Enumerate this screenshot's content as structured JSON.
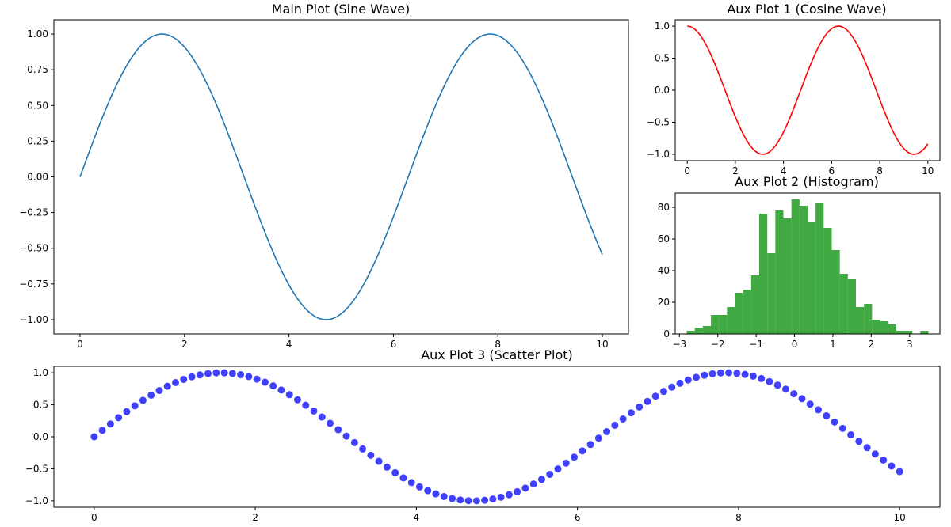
{
  "chart_data": [
    {
      "id": "main",
      "type": "line",
      "title": "Main Plot (Sine Wave)",
      "function": "sin",
      "color": "#1f77b4",
      "x_range": [
        0,
        10
      ],
      "xlim": [
        -0.5,
        10.5
      ],
      "ylim": [
        -1.1,
        1.1
      ],
      "x_ticks": [
        0,
        2,
        4,
        6,
        8,
        10
      ],
      "x_tick_labels": [
        "0",
        "2",
        "4",
        "6",
        "8",
        "10"
      ],
      "y_ticks": [
        -1.0,
        -0.75,
        -0.5,
        -0.25,
        0.0,
        0.25,
        0.5,
        0.75,
        1.0
      ],
      "y_tick_labels": [
        "−1.00",
        "−0.75",
        "−0.50",
        "−0.25",
        "0.00",
        "0.25",
        "0.50",
        "0.75",
        "1.00"
      ],
      "grid": false
    },
    {
      "id": "aux1",
      "type": "line",
      "title": "Aux Plot 1 (Cosine Wave)",
      "function": "cos",
      "color": "#ff0000",
      "x_range": [
        0,
        10
      ],
      "xlim": [
        -0.5,
        10.5
      ],
      "ylim": [
        -1.1,
        1.1
      ],
      "x_ticks": [
        0,
        2,
        4,
        6,
        8,
        10
      ],
      "x_tick_labels": [
        "0",
        "2",
        "4",
        "6",
        "8",
        "10"
      ],
      "y_ticks": [
        -1.0,
        -0.5,
        0.0,
        0.5,
        1.0
      ],
      "y_tick_labels": [
        "−1.0",
        "−0.5",
        "0.0",
        "0.5",
        "1.0"
      ],
      "grid": false
    },
    {
      "id": "aux2",
      "type": "bar",
      "subtype": "histogram",
      "title": "Aux Plot 2 (Histogram)",
      "color": "#2ca02c",
      "alpha": 0.9,
      "bin_edges": [
        -2.81,
        -2.6,
        -2.39,
        -2.18,
        -1.97,
        -1.76,
        -1.55,
        -1.34,
        -1.13,
        -0.92,
        -0.71,
        -0.5,
        -0.29,
        -0.08,
        0.13,
        0.34,
        0.55,
        0.76,
        0.97,
        1.18,
        1.39,
        1.6,
        1.81,
        2.02,
        2.23,
        2.44,
        2.65,
        2.86,
        3.07,
        3.28,
        3.49
      ],
      "values": [
        2,
        4,
        5,
        12,
        12,
        17,
        26,
        28,
        37,
        76,
        51,
        78,
        73,
        85,
        81,
        71,
        83,
        67,
        53,
        38,
        35,
        17,
        19,
        9,
        8,
        6,
        2,
        2,
        0,
        2
      ],
      "xlim": [
        -3.11,
        3.79
      ],
      "ylim": [
        0,
        89
      ],
      "x_ticks": [
        -3,
        -2,
        -1,
        0,
        1,
        2,
        3
      ],
      "x_tick_labels": [
        "−3",
        "−2",
        "−1",
        "0",
        "1",
        "2",
        "3"
      ],
      "y_ticks": [
        0,
        20,
        40,
        60,
        80
      ],
      "y_tick_labels": [
        "0",
        "20",
        "40",
        "60",
        "80"
      ],
      "grid": false
    },
    {
      "id": "aux3",
      "type": "scatter",
      "title": "Aux Plot 3 (Scatter Plot)",
      "function": "sin",
      "color": "#0000ff",
      "alpha": 0.75,
      "x_range": [
        0,
        10
      ],
      "n_points": 100,
      "xlim": [
        -0.5,
        10.5
      ],
      "ylim": [
        -1.1,
        1.1
      ],
      "x_ticks": [
        0,
        2,
        4,
        6,
        8,
        10
      ],
      "x_tick_labels": [
        "0",
        "2",
        "4",
        "6",
        "8",
        "10"
      ],
      "y_ticks": [
        -1.0,
        -0.5,
        0.0,
        0.5,
        1.0
      ],
      "y_tick_labels": [
        "−1.0",
        "−0.5",
        "0.0",
        "0.5",
        "1.0"
      ],
      "grid": false
    }
  ]
}
